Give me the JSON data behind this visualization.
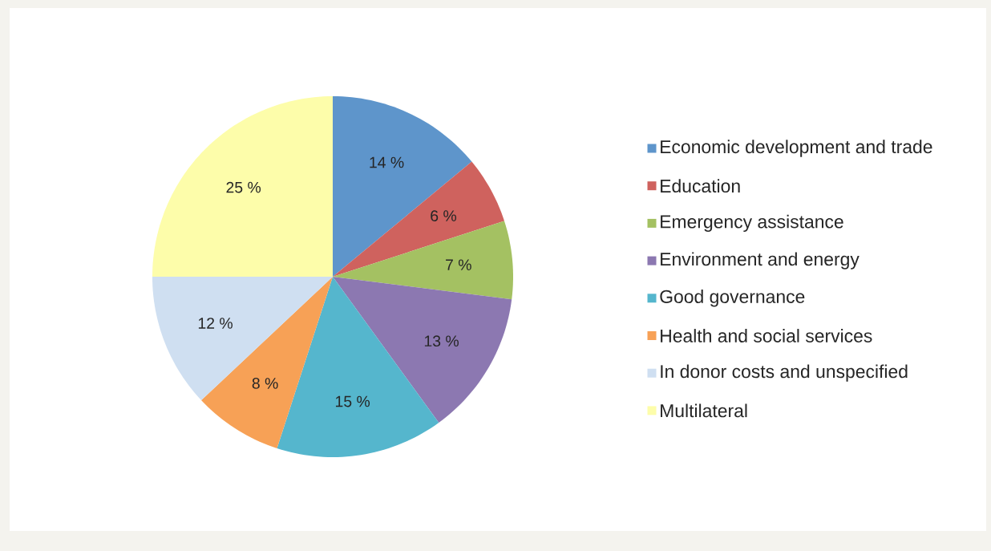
{
  "chart_data": {
    "type": "pie",
    "categories": [
      "Economic development and trade",
      "Education",
      "Emergency assistance",
      "Environment and energy",
      "Good governance",
      "Health and social services",
      "In donor costs and unspecified",
      "Multilateral"
    ],
    "values": [
      14,
      6,
      7,
      13,
      15,
      8,
      12,
      25
    ],
    "value_labels": [
      "14 %",
      "6 %",
      "7 %",
      "13 %",
      "15 %",
      "8 %",
      "12 %",
      "25 %"
    ],
    "colors": [
      "#5e95cb",
      "#cf625e",
      "#a4c162",
      "#8c78b1",
      "#55b6cd",
      "#f7a156",
      "#cfdff1",
      "#fdfdaa"
    ],
    "legend": "right"
  }
}
